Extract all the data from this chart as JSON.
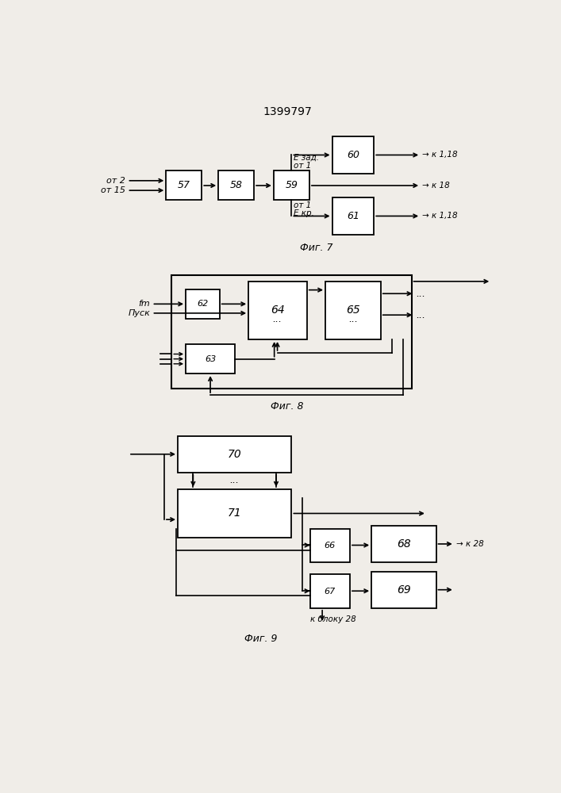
{
  "title": "1399797",
  "bg_color": "#f0ede8",
  "fig7_label": "Фиг. 7",
  "fig8_label": "Фиг. 8",
  "fig9_label": "Фиг. 9"
}
